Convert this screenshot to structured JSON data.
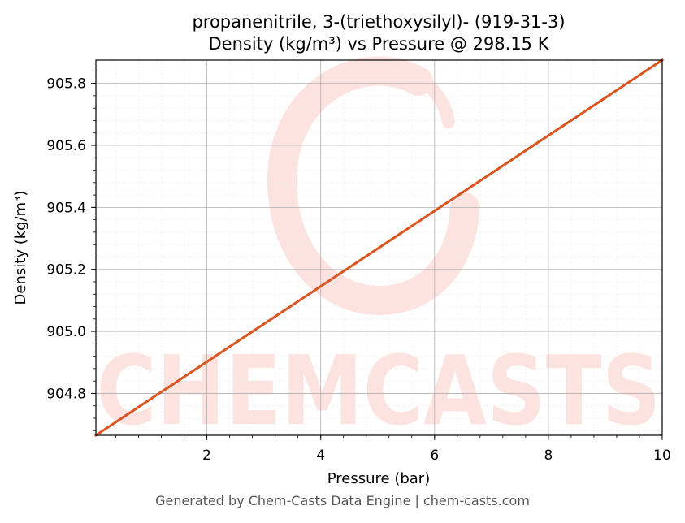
{
  "chart_data": {
    "type": "line",
    "title_line1": "propanenitrile, 3-(triethoxysilyl)- (919-31-3)",
    "title_line2": "Density (kg/m³) vs Pressure @ 298.15 K",
    "xlabel": "Pressure (bar)",
    "ylabel": "Density (kg/m³)",
    "xlim": [
      0.05,
      10
    ],
    "ylim": [
      904.665,
      905.875
    ],
    "x_ticks": [
      2,
      4,
      6,
      8,
      10
    ],
    "x_tick_labels": [
      "2",
      "4",
      "6",
      "8",
      "10"
    ],
    "y_ticks": [
      904.8,
      905.0,
      905.2,
      905.4,
      905.6,
      905.8
    ],
    "y_tick_labels": [
      "904.8",
      "905.0",
      "905.2",
      "905.4",
      "905.6",
      "905.8"
    ],
    "grid": true,
    "series": [
      {
        "color": "#d9541e",
        "x": [
          0.05,
          10
        ],
        "y": [
          904.665,
          905.875
        ]
      }
    ]
  },
  "watermark": {
    "text": "CHEMCASTS",
    "color": "#fde3e0"
  },
  "footer": {
    "text": "Generated by Chem-Casts Data Engine | chem-casts.com"
  }
}
